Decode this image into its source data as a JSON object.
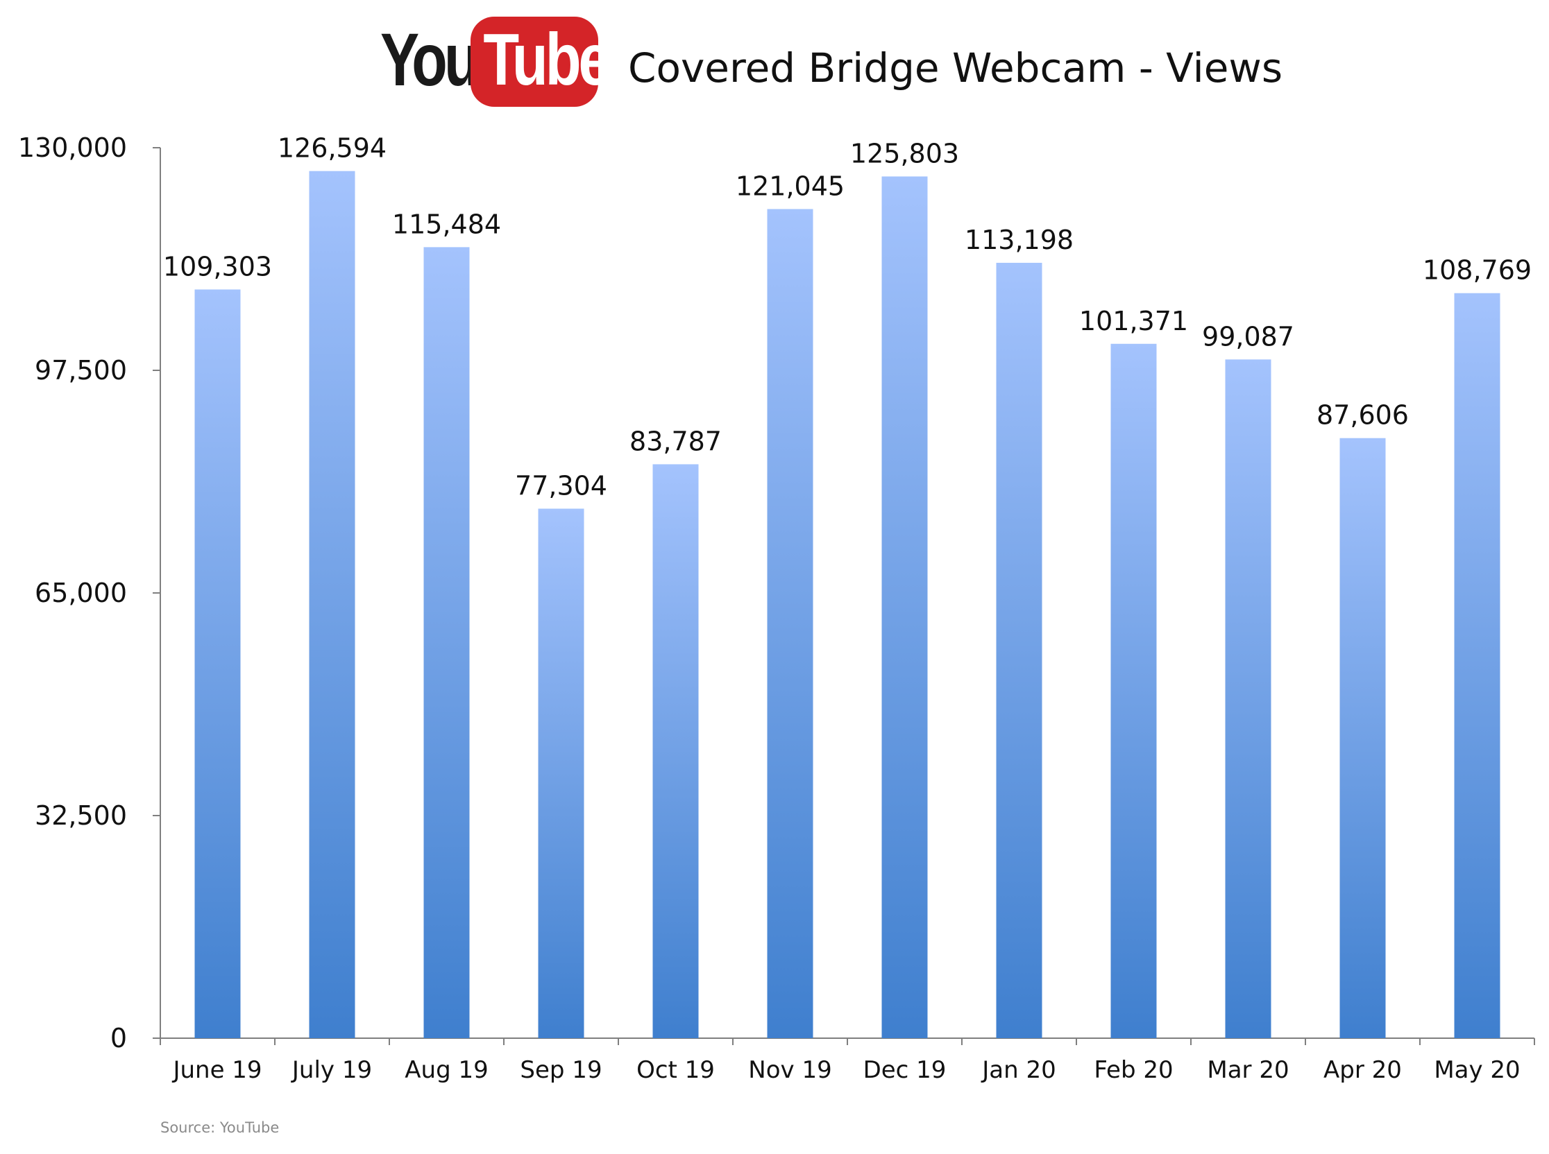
{
  "header": {
    "logo_you": "You",
    "logo_tube": "Tube",
    "logo_red": "#d42428"
  },
  "chart_data": {
    "type": "bar",
    "title": "Covered Bridge Webcam - Views",
    "xlabel": "",
    "ylabel": "",
    "categories": [
      "June 19",
      "July 19",
      "Aug 19",
      "Sep 19",
      "Oct 19",
      "Nov 19",
      "Dec 19",
      "Jan 20",
      "Feb 20",
      "Mar 20",
      "Apr 20",
      "May 20"
    ],
    "values": [
      109303,
      126594,
      115484,
      77304,
      83787,
      121045,
      125803,
      113198,
      101371,
      99087,
      87606,
      108769
    ],
    "value_labels": [
      "109,303",
      "126,594",
      "115,484",
      "77,304",
      "83,787",
      "121,045",
      "125,803",
      "113,198",
      "101,371",
      "99,087",
      "87,606",
      "108,769"
    ],
    "ylim": [
      0,
      130000
    ],
    "yticks": [
      0,
      32500,
      65000,
      97500,
      130000
    ],
    "ytick_labels": [
      "0",
      "32,500",
      "65,000",
      "97,500",
      "130,000"
    ],
    "grid": false,
    "legend": "none",
    "bar_color_top": "#a4c3fd",
    "bar_color_bottom": "#3f7fce"
  },
  "footer": {
    "source": "Source: YouTube"
  }
}
